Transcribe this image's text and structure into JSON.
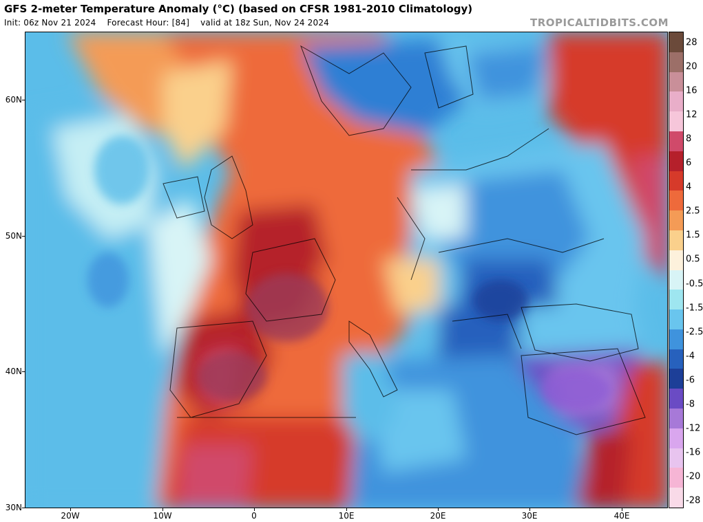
{
  "header": {
    "title": "GFS 2-meter Temperature Anomaly (°C) (based on CFSR 1981-2010 Climatology)",
    "init": "Init: 06z Nov 21 2024",
    "forecast_hour": "Forecast Hour: [84]",
    "valid": "valid at 18z Sun, Nov 24 2024",
    "watermark": "TROPICALTIDBITS.COM"
  },
  "map": {
    "lat_labels": [
      "60N",
      "50N",
      "40N",
      "30N"
    ],
    "lon_labels": [
      "20W",
      "10W",
      "0",
      "10E",
      "20E",
      "30E",
      "40E"
    ]
  },
  "colorbar": {
    "labels": [
      "28",
      "20",
      "16",
      "12",
      "8",
      "6",
      "4",
      "2.5",
      "1.5",
      "0.5",
      "-0.5",
      "-1.5",
      "-2.5",
      "-4",
      "-6",
      "-8",
      "-12",
      "-16",
      "-20",
      "-28"
    ],
    "colors": [
      "#6b4a3a",
      "#9c6f68",
      "#c98f99",
      "#e9aec9",
      "#f6c6da",
      "#d04a6a",
      "#b5202b",
      "#d63a2a",
      "#ee6a3b",
      "#f49b56",
      "#fad08c",
      "#fdf1dc",
      "#d8f4f6",
      "#9ee6f0",
      "#69c5ee",
      "#3f93dd",
      "#2761bd",
      "#1d3f98",
      "#6a4bc4",
      "#a779d8",
      "#d9a6ee",
      "#e8c4ef",
      "#f6b5d5",
      "#f9dae8"
    ]
  }
}
